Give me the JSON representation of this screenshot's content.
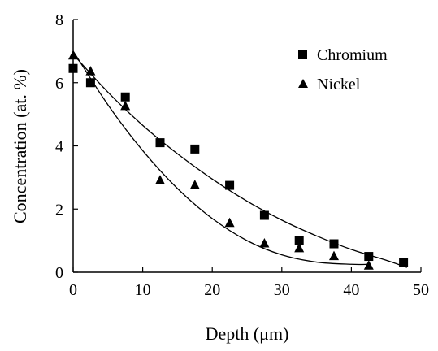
{
  "chart_data": {
    "type": "scatter",
    "title": "",
    "xlabel": "Depth (μm)",
    "ylabel": "Concentration (at. %)",
    "xlim": [
      0,
      50
    ],
    "ylim": [
      0,
      8
    ],
    "xticks": [
      "0",
      "10",
      "20",
      "30",
      "40",
      "50"
    ],
    "yticks": [
      "0",
      "2",
      "4",
      "6",
      "8"
    ],
    "grid": false,
    "legend_position": "top-right",
    "series": [
      {
        "name": "Chromium",
        "marker": "square",
        "color": "#000000",
        "points": [
          [
            0,
            6.45
          ],
          [
            2.5,
            6.0
          ],
          [
            7.5,
            5.55
          ],
          [
            12.5,
            4.1
          ],
          [
            17.5,
            3.9
          ],
          [
            22.5,
            2.75
          ],
          [
            27.5,
            1.8
          ],
          [
            32.5,
            1.0
          ],
          [
            37.5,
            0.9
          ],
          [
            42.5,
            0.5
          ],
          [
            47.5,
            0.3
          ]
        ],
        "fit_curve": [
          [
            0,
            6.9
          ],
          [
            5,
            5.7
          ],
          [
            10,
            4.65
          ],
          [
            15,
            3.75
          ],
          [
            20,
            2.95
          ],
          [
            25,
            2.25
          ],
          [
            30,
            1.65
          ],
          [
            35,
            1.15
          ],
          [
            40,
            0.72
          ],
          [
            45,
            0.38
          ],
          [
            48,
            0.15
          ]
        ]
      },
      {
        "name": "Nickel",
        "marker": "triangle",
        "color": "#000000",
        "points": [
          [
            0,
            6.85
          ],
          [
            2.5,
            6.35
          ],
          [
            7.5,
            5.25
          ],
          [
            12.5,
            2.9
          ],
          [
            17.5,
            2.75
          ],
          [
            22.5,
            1.55
          ],
          [
            27.5,
            0.9
          ],
          [
            32.5,
            0.75
          ],
          [
            37.5,
            0.5
          ],
          [
            42.5,
            0.2
          ]
        ],
        "fit_curve": [
          [
            0,
            7.0
          ],
          [
            5,
            5.3
          ],
          [
            10,
            3.85
          ],
          [
            15,
            2.65
          ],
          [
            20,
            1.7
          ],
          [
            25,
            1.0
          ],
          [
            30,
            0.55
          ],
          [
            35,
            0.32
          ],
          [
            40,
            0.25
          ],
          [
            42.5,
            0.25
          ]
        ]
      }
    ]
  }
}
